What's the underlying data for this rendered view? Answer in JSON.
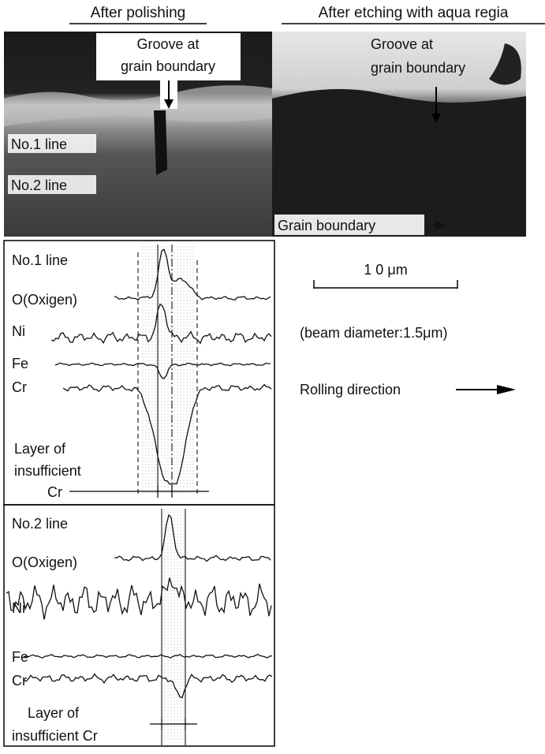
{
  "headers": {
    "left": "After polishing",
    "right": "After etching with aqua regia"
  },
  "photo_left": {
    "groove_label": [
      "Groove at",
      "grain boundary"
    ],
    "line1": "No.1 line",
    "line2": "No.2 line"
  },
  "photo_right": {
    "groove_label": [
      "Groove at",
      "grain boundary"
    ],
    "boundary_label": "Grain boundary"
  },
  "profiles": [
    {
      "title": "No.1 line",
      "labels": [
        "O(Oxigen)",
        "Ni",
        "Fe",
        "Cr"
      ],
      "layer_label": [
        "Layer of",
        "insufficient",
        "Cr"
      ]
    },
    {
      "title": "No.2 line",
      "labels": [
        "O(Oxigen)",
        "Ni",
        "Fe",
        "Cr"
      ],
      "layer_label": [
        "Layer of",
        "insufficient Cr"
      ]
    }
  ],
  "scale_bar": "1 0 μm",
  "beam": "(beam diameter:1.5μm)",
  "rolling": "Rolling direction"
}
